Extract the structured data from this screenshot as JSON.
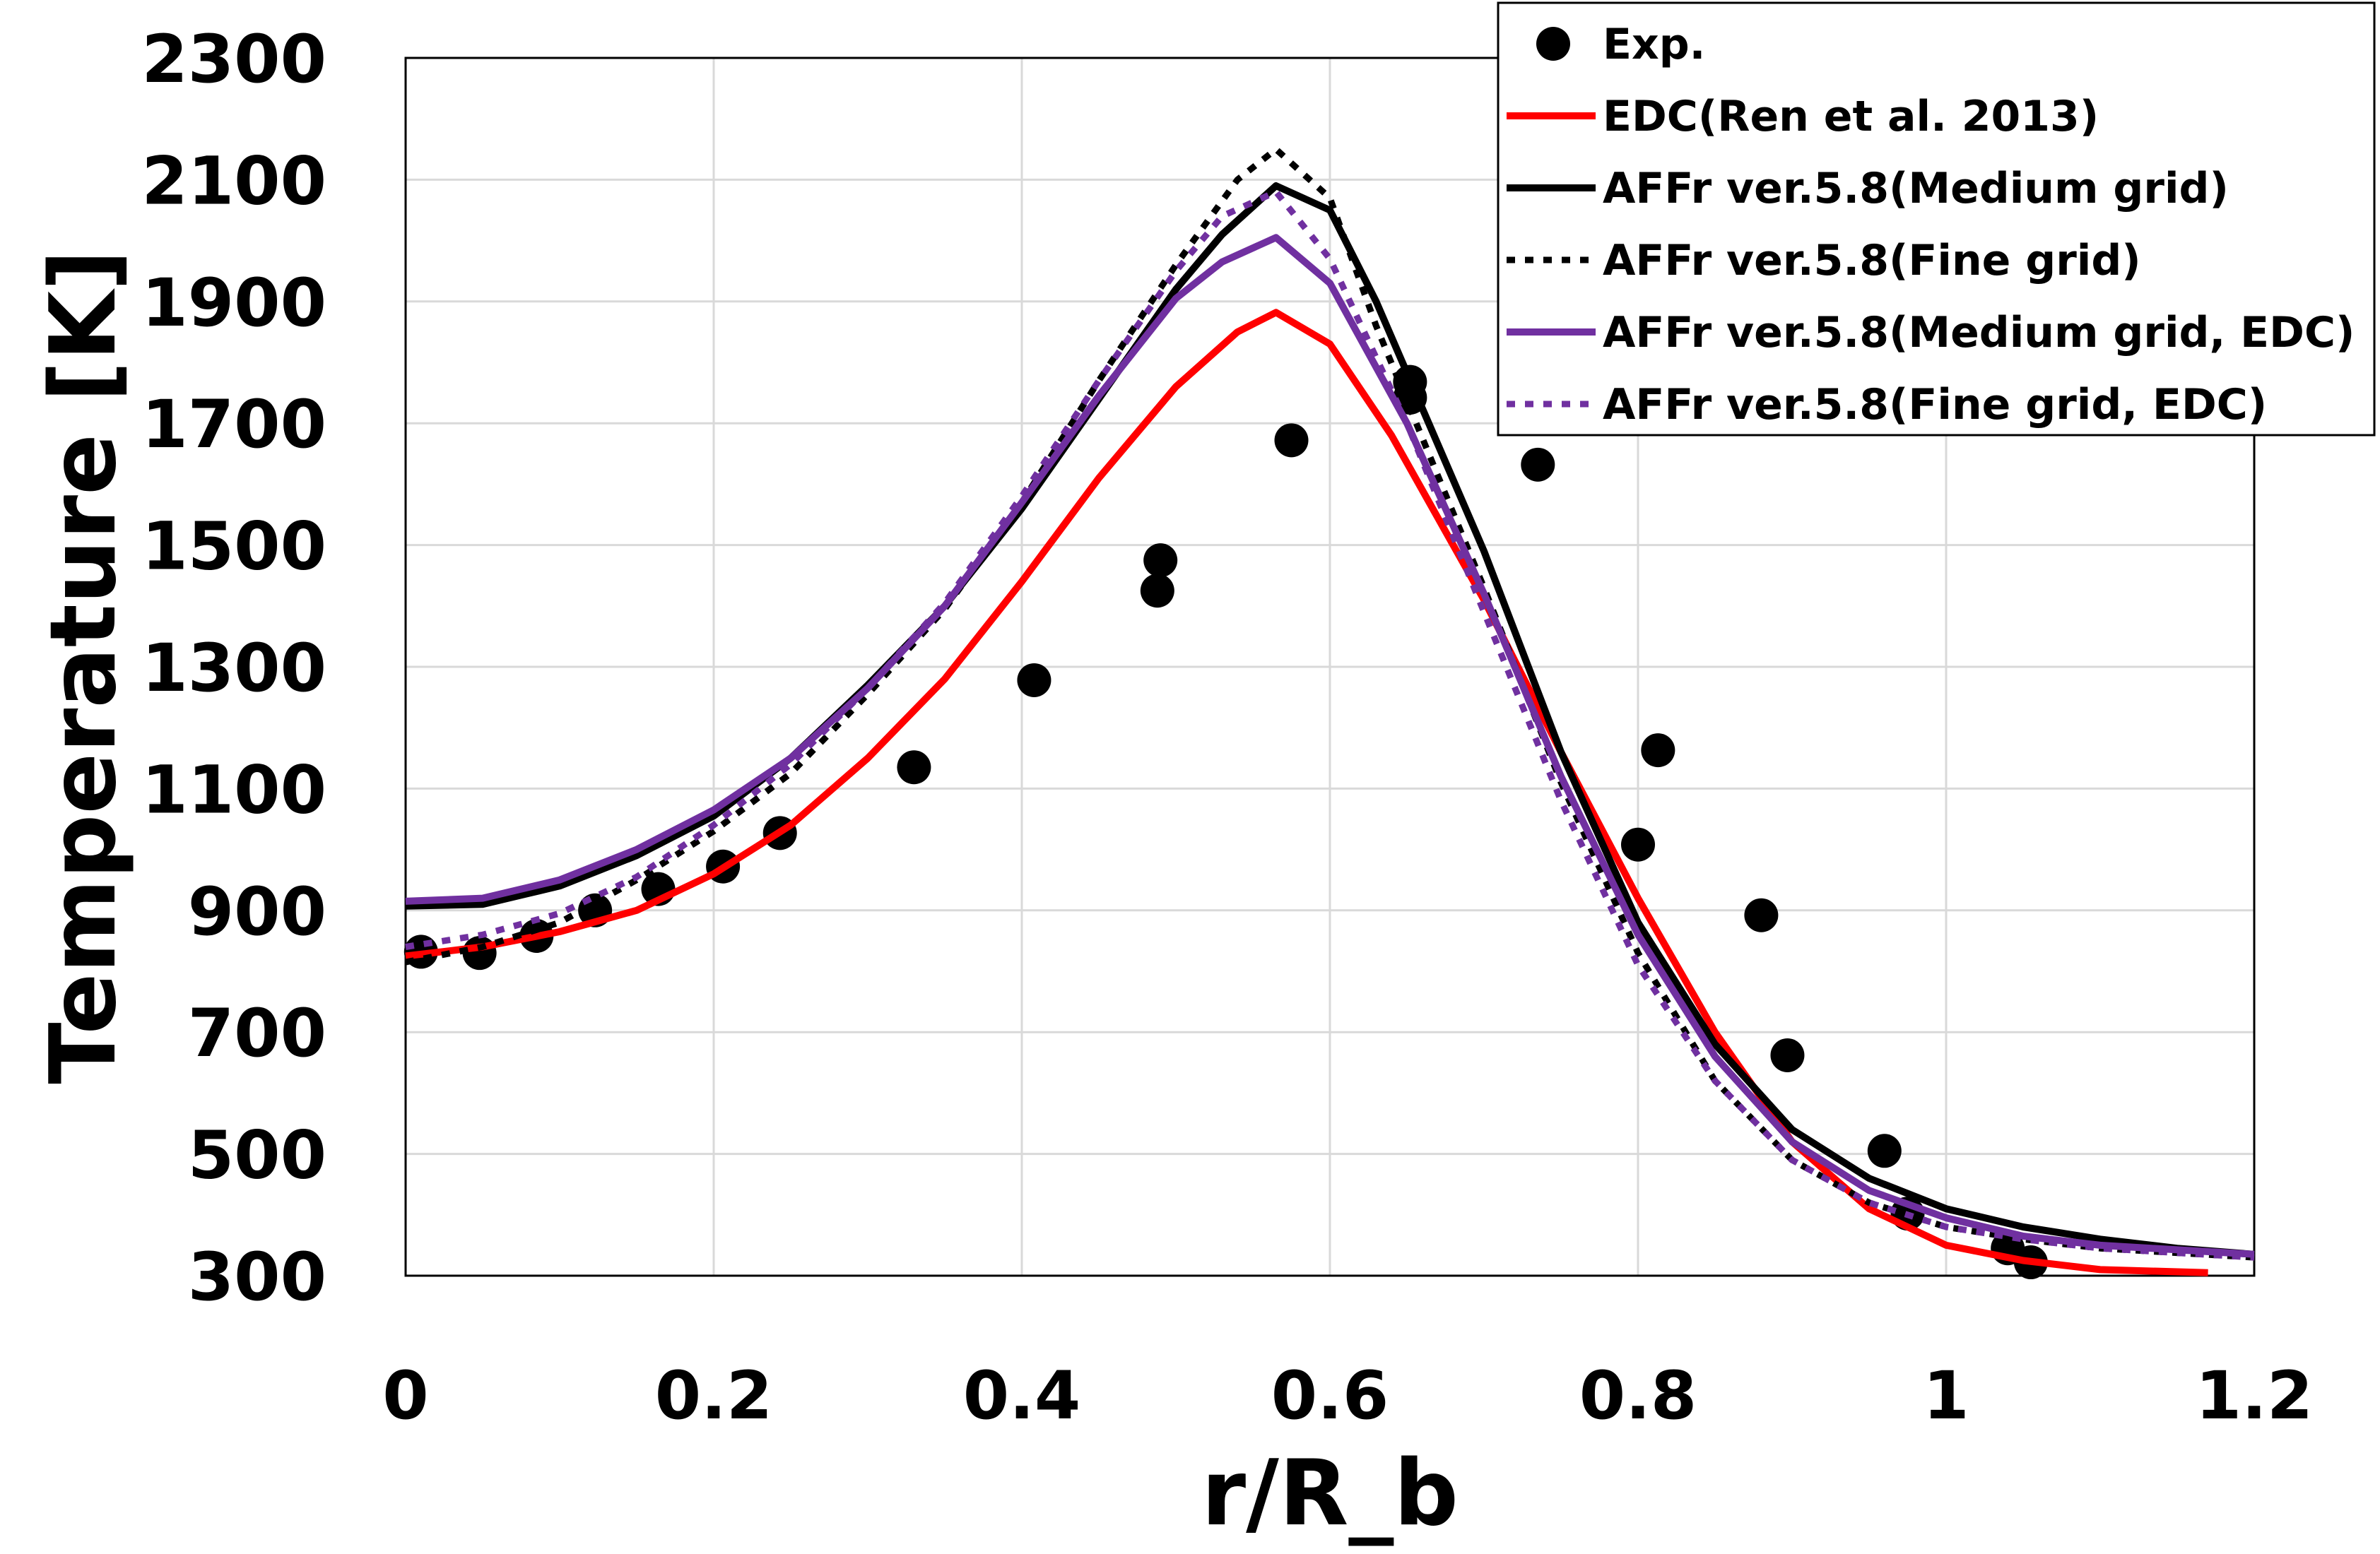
{
  "chart_data": {
    "type": "line",
    "xlabel": "r/R_b",
    "ylabel": "Temperature [K]",
    "xlim": [
      0,
      1.2
    ],
    "ylim": [
      300,
      2300
    ],
    "xticks": [
      0,
      0.2,
      0.4,
      0.6,
      0.8,
      1,
      1.2
    ],
    "xtick_labels": [
      "0",
      "0.2",
      "0.4",
      "0.6",
      "0.8",
      "1",
      "1.2"
    ],
    "yticks": [
      300,
      500,
      700,
      900,
      1100,
      1300,
      1500,
      1700,
      1900,
      2100,
      2300
    ],
    "ytick_labels": [
      "300",
      "500",
      "700",
      "900",
      "1100",
      "1300",
      "1500",
      "1700",
      "1900",
      "2100",
      "2300"
    ],
    "grid": true,
    "legend_position": "top-right",
    "series": [
      {
        "name": "Exp.",
        "kind": "scatter",
        "color": "#000000",
        "points": [
          [
            0.01,
            832
          ],
          [
            0.048,
            830
          ],
          [
            0.085,
            858
          ],
          [
            0.123,
            900
          ],
          [
            0.164,
            935
          ],
          [
            0.206,
            972
          ],
          [
            0.243,
            1027
          ],
          [
            0.33,
            1135
          ],
          [
            0.408,
            1278
          ],
          [
            0.488,
            1425
          ],
          [
            0.49,
            1475
          ],
          [
            0.575,
            1672
          ],
          [
            0.652,
            1768
          ],
          [
            0.652,
            1742
          ],
          [
            0.735,
            1632
          ],
          [
            0.8,
            1008
          ],
          [
            0.813,
            1163
          ],
          [
            0.88,
            892
          ],
          [
            0.897,
            662
          ],
          [
            0.96,
            505
          ],
          [
            0.975,
            402
          ],
          [
            1.04,
            345
          ],
          [
            1.055,
            322
          ]
        ]
      },
      {
        "name": "EDC(Ren et al. 2013)",
        "kind": "line",
        "color": "#ff0000",
        "dash": "solid",
        "points": [
          [
            0,
            825
          ],
          [
            0.05,
            840
          ],
          [
            0.1,
            865
          ],
          [
            0.15,
            900
          ],
          [
            0.2,
            960
          ],
          [
            0.25,
            1040
          ],
          [
            0.3,
            1150
          ],
          [
            0.35,
            1280
          ],
          [
            0.4,
            1440
          ],
          [
            0.45,
            1610
          ],
          [
            0.5,
            1760
          ],
          [
            0.54,
            1850
          ],
          [
            0.565,
            1882
          ],
          [
            0.6,
            1830
          ],
          [
            0.64,
            1680
          ],
          [
            0.7,
            1410
          ],
          [
            0.75,
            1160
          ],
          [
            0.8,
            920
          ],
          [
            0.85,
            700
          ],
          [
            0.9,
            520
          ],
          [
            0.95,
            410
          ],
          [
            1.0,
            350
          ],
          [
            1.05,
            325
          ],
          [
            1.1,
            310
          ],
          [
            1.17,
            305
          ]
        ]
      },
      {
        "name": "AFFr ver.5.8(Medium grid)",
        "kind": "line",
        "color": "#000000",
        "dash": "solid",
        "points": [
          [
            0,
            907
          ],
          [
            0.05,
            910
          ],
          [
            0.1,
            940
          ],
          [
            0.15,
            990
          ],
          [
            0.2,
            1055
          ],
          [
            0.25,
            1150
          ],
          [
            0.3,
            1270
          ],
          [
            0.35,
            1400
          ],
          [
            0.4,
            1560
          ],
          [
            0.45,
            1740
          ],
          [
            0.5,
            1920
          ],
          [
            0.53,
            2010
          ],
          [
            0.565,
            2090
          ],
          [
            0.6,
            2050
          ],
          [
            0.63,
            1900
          ],
          [
            0.7,
            1490
          ],
          [
            0.75,
            1160
          ],
          [
            0.8,
            880
          ],
          [
            0.85,
            680
          ],
          [
            0.9,
            540
          ],
          [
            0.95,
            460
          ],
          [
            1.0,
            410
          ],
          [
            1.05,
            380
          ],
          [
            1.1,
            360
          ],
          [
            1.15,
            345
          ],
          [
            1.2,
            335
          ]
        ]
      },
      {
        "name": "AFFr ver.5.8(Fine grid)",
        "kind": "line",
        "color": "#000000",
        "dash": "dotted",
        "points": [
          [
            0,
            815
          ],
          [
            0.05,
            840
          ],
          [
            0.1,
            880
          ],
          [
            0.15,
            950
          ],
          [
            0.2,
            1030
          ],
          [
            0.25,
            1125
          ],
          [
            0.3,
            1255
          ],
          [
            0.35,
            1395
          ],
          [
            0.4,
            1570
          ],
          [
            0.45,
            1770
          ],
          [
            0.5,
            1960
          ],
          [
            0.54,
            2100
          ],
          [
            0.565,
            2150
          ],
          [
            0.6,
            2070
          ],
          [
            0.63,
            1860
          ],
          [
            0.7,
            1430
          ],
          [
            0.75,
            1110
          ],
          [
            0.8,
            830
          ],
          [
            0.85,
            620
          ],
          [
            0.9,
            490
          ],
          [
            0.95,
            420
          ],
          [
            1.0,
            380
          ],
          [
            1.05,
            360
          ],
          [
            1.1,
            345
          ],
          [
            1.2,
            330
          ]
        ]
      },
      {
        "name": "AFFr ver.5.8(Medium grid, EDC)",
        "kind": "line",
        "color": "#7030a0",
        "dash": "solid",
        "points": [
          [
            0,
            915
          ],
          [
            0.05,
            920
          ],
          [
            0.1,
            950
          ],
          [
            0.15,
            1000
          ],
          [
            0.2,
            1065
          ],
          [
            0.25,
            1150
          ],
          [
            0.3,
            1265
          ],
          [
            0.35,
            1400
          ],
          [
            0.4,
            1570
          ],
          [
            0.45,
            1745
          ],
          [
            0.5,
            1905
          ],
          [
            0.53,
            1965
          ],
          [
            0.565,
            2005
          ],
          [
            0.6,
            1930
          ],
          [
            0.65,
            1700
          ],
          [
            0.7,
            1420
          ],
          [
            0.75,
            1120
          ],
          [
            0.8,
            860
          ],
          [
            0.85,
            660
          ],
          [
            0.9,
            520
          ],
          [
            0.95,
            440
          ],
          [
            1.0,
            395
          ],
          [
            1.05,
            365
          ],
          [
            1.1,
            350
          ],
          [
            1.2,
            335
          ]
        ]
      },
      {
        "name": "AFFr ver.5.8(Fine grid, EDC)",
        "kind": "line",
        "color": "#7030a0",
        "dash": "dotted",
        "points": [
          [
            0,
            840
          ],
          [
            0.05,
            860
          ],
          [
            0.1,
            895
          ],
          [
            0.15,
            955
          ],
          [
            0.2,
            1040
          ],
          [
            0.25,
            1140
          ],
          [
            0.3,
            1265
          ],
          [
            0.35,
            1405
          ],
          [
            0.4,
            1580
          ],
          [
            0.45,
            1770
          ],
          [
            0.5,
            1950
          ],
          [
            0.53,
            2040
          ],
          [
            0.565,
            2080
          ],
          [
            0.6,
            1970
          ],
          [
            0.65,
            1700
          ],
          [
            0.7,
            1390
          ],
          [
            0.75,
            1080
          ],
          [
            0.8,
            810
          ],
          [
            0.85,
            620
          ],
          [
            0.9,
            490
          ],
          [
            0.95,
            420
          ],
          [
            1.0,
            380
          ],
          [
            1.05,
            360
          ],
          [
            1.1,
            345
          ],
          [
            1.2,
            330
          ]
        ]
      }
    ]
  }
}
